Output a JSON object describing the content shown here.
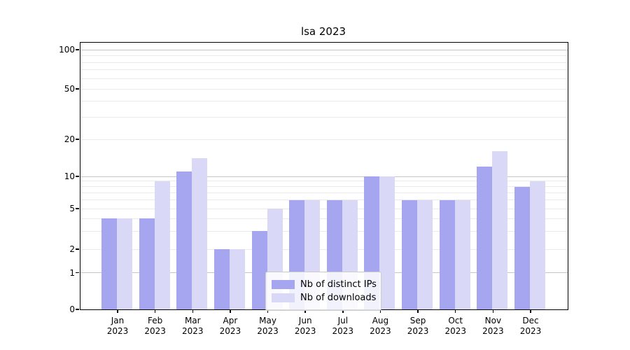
{
  "figure": {
    "background": "#ffffff"
  },
  "chart_data": {
    "type": "bar",
    "title": "lsa 2023",
    "categories": [
      "Jan",
      "Feb",
      "Mar",
      "Apr",
      "May",
      "Jun",
      "Jul",
      "Aug",
      "Sep",
      "Oct",
      "Nov",
      "Dec"
    ],
    "category_year": "2023",
    "series": [
      {
        "name": "Nb of distinct IPs",
        "color": "#a5a5f0",
        "values": [
          4,
          4,
          11,
          2,
          3,
          6,
          6,
          10,
          6,
          6,
          12,
          8
        ]
      },
      {
        "name": "Nb of downloads",
        "color": "#d9d9f7",
        "values": [
          4,
          9,
          14,
          2,
          5,
          6,
          6,
          10,
          6,
          6,
          16,
          9
        ]
      }
    ],
    "yscale": "symlog",
    "yticks": [
      0,
      1,
      2,
      5,
      10,
      20,
      50,
      100
    ],
    "minor_grid_values": [
      3,
      4,
      6,
      7,
      8,
      9,
      30,
      40,
      60,
      70,
      80,
      90
    ],
    "light_grid_values": [
      2,
      5,
      20,
      50
    ],
    "major_grid_values": [
      1,
      10,
      100
    ],
    "ylim": [
      0,
      115
    ],
    "xlabel": "",
    "ylabel": "",
    "grid": true,
    "legend_position": "lower center",
    "colors": {
      "major_grid": "#c6c6c6",
      "minor_grid": "#eaeaea",
      "spine": "#000000",
      "text": "#000000",
      "legend_border": "#cccccc"
    }
  }
}
